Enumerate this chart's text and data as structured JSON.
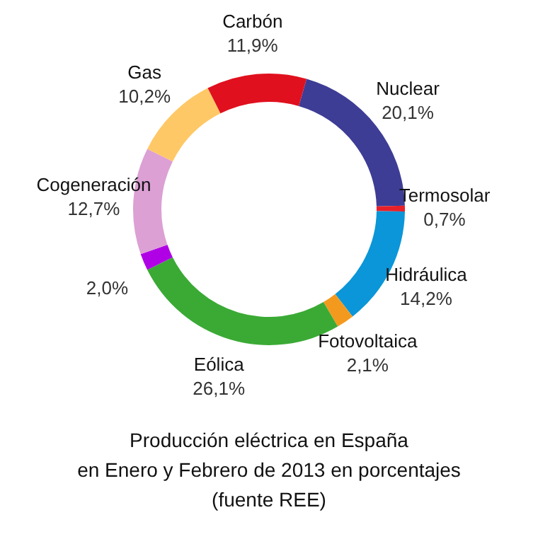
{
  "chart_data": {
    "type": "donut",
    "title": "Producción eléctrica en España",
    "subtitle": "en Enero y Febrero de 2013 en porcentajes",
    "annotations": [
      "(fuente REE)"
    ],
    "categories": [
      "Nuclear",
      "Termosolar",
      "Hidráulica",
      "Fotovoltaica",
      "Eólica",
      null,
      "Cogeneración",
      "Gas",
      "Carbón"
    ],
    "values": [
      20.1,
      0.7,
      14.2,
      2.1,
      26.1,
      2.0,
      12.7,
      10.2,
      11.9
    ],
    "value_labels": [
      "20,1%",
      "0,7%",
      "14,2%",
      "2,1%",
      "26,1%",
      "2,0%",
      "12,7%",
      "10,2%",
      "11,9%"
    ],
    "colors": [
      "#3d3d96",
      "#e8202a",
      "#0a96d8",
      "#f39a1e",
      "#3aaa35",
      "#b000e6",
      "#dca0d4",
      "#ffc866",
      "#e0101e"
    ]
  }
}
